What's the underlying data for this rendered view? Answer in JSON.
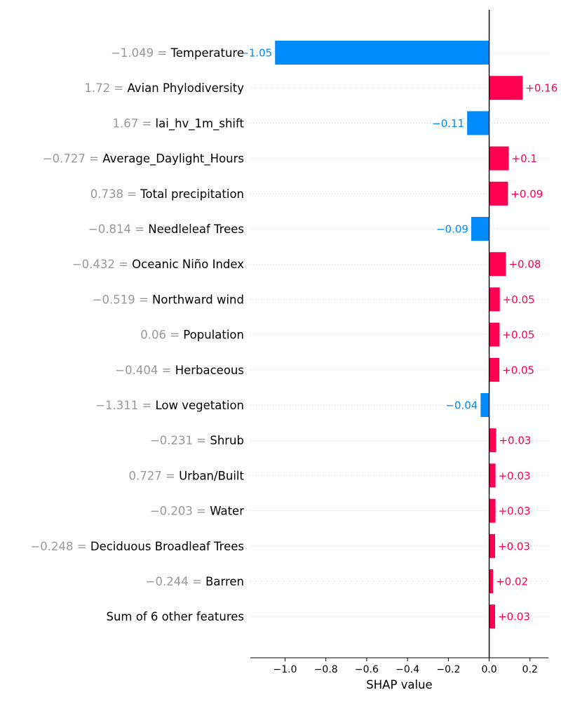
{
  "chart_data": {
    "type": "bar",
    "orientation": "horizontal",
    "xlabel": "SHAP value",
    "xlim": [
      -1.17,
      0.29
    ],
    "xticks": [
      -1.0,
      -0.8,
      -0.6,
      -0.4,
      -0.2,
      0.0,
      0.2
    ],
    "xtick_labels": [
      "−1.0",
      "−0.8",
      "−0.6",
      "−0.4",
      "−0.2",
      "0.0",
      "0.2"
    ],
    "grid": "dotted horizontal row guides",
    "colors": {
      "positive": "#ff0051",
      "negative": "#008bfb",
      "feature_value": "#999999"
    },
    "features": [
      {
        "value_label": "−1.049 = ",
        "name": "Temperature",
        "shap": -1.049,
        "shap_label": "−1.05"
      },
      {
        "value_label": "1.72 = ",
        "name": "Avian Phylodiversity",
        "shap": 0.164,
        "shap_label": "+0.16"
      },
      {
        "value_label": "1.67 = ",
        "name": "lai_hv_1m_shift",
        "shap": -0.108,
        "shap_label": "−0.11"
      },
      {
        "value_label": "−0.727 = ",
        "name": "Average_Daylight_Hours",
        "shap": 0.096,
        "shap_label": "+0.1"
      },
      {
        "value_label": "0.738 = ",
        "name": "Total precipitation",
        "shap": 0.092,
        "shap_label": "+0.09"
      },
      {
        "value_label": "−0.814 = ",
        "name": "Needleleaf Trees",
        "shap": -0.088,
        "shap_label": "−0.09"
      },
      {
        "value_label": "−0.432 = ",
        "name": "Oceanic Niño Index",
        "shap": 0.082,
        "shap_label": "+0.08"
      },
      {
        "value_label": "−0.519 = ",
        "name": "Northward wind",
        "shap": 0.052,
        "shap_label": "+0.05"
      },
      {
        "value_label": "0.06 = ",
        "name": "Population",
        "shap": 0.051,
        "shap_label": "+0.05"
      },
      {
        "value_label": "−0.404 = ",
        "name": "Herbaceous",
        "shap": 0.05,
        "shap_label": "+0.05"
      },
      {
        "value_label": "−1.311 = ",
        "name": "Low vegetation",
        "shap": -0.042,
        "shap_label": "−0.04"
      },
      {
        "value_label": "−0.231 = ",
        "name": "Shrub",
        "shap": 0.034,
        "shap_label": "+0.03"
      },
      {
        "value_label": "0.727 = ",
        "name": "Urban/Built",
        "shap": 0.031,
        "shap_label": "+0.03"
      },
      {
        "value_label": "−0.203 = ",
        "name": "Water",
        "shap": 0.031,
        "shap_label": "+0.03"
      },
      {
        "value_label": "−0.248 = ",
        "name": "Deciduous Broadleaf Trees",
        "shap": 0.029,
        "shap_label": "+0.03"
      },
      {
        "value_label": "−0.244 = ",
        "name": "Barren",
        "shap": 0.019,
        "shap_label": "+0.02"
      },
      {
        "value_label": "",
        "name": "Sum of 6 other features",
        "shap": 0.029,
        "shap_label": "+0.03"
      }
    ]
  }
}
